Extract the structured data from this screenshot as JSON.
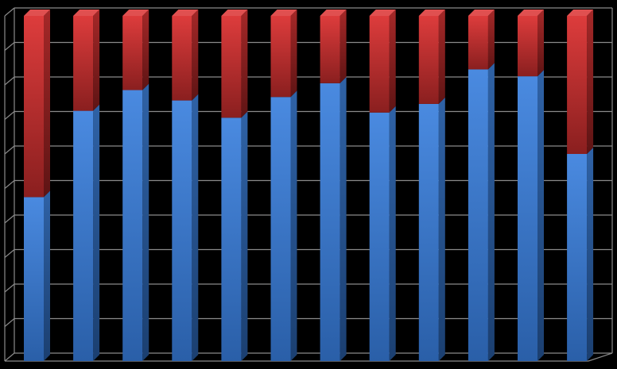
{
  "chart_data": {
    "type": "bar",
    "stacked": "percent",
    "three_d": true,
    "background": "#000000",
    "grid": true,
    "ylim": [
      0,
      100
    ],
    "y_gridlines": 10,
    "categories": [
      "",
      "",
      "",
      "",
      "",
      "",
      "",
      "",
      "",
      "",
      "",
      ""
    ],
    "series": [
      {
        "color_top": "#4a8ae0",
        "color_bottom": "#2a5fa8",
        "values": [
          47.5,
          72.5,
          78.5,
          75.5,
          70.5,
          76.5,
          80.5,
          72.0,
          74.5,
          84.5,
          82.5,
          60.0
        ]
      },
      {
        "color_top": "#dd3c3c",
        "color_bottom": "#8a1f1f",
        "values": [
          52.5,
          27.5,
          21.5,
          24.5,
          29.5,
          23.5,
          19.5,
          28.0,
          25.5,
          15.5,
          17.5,
          40.0
        ]
      }
    ]
  }
}
